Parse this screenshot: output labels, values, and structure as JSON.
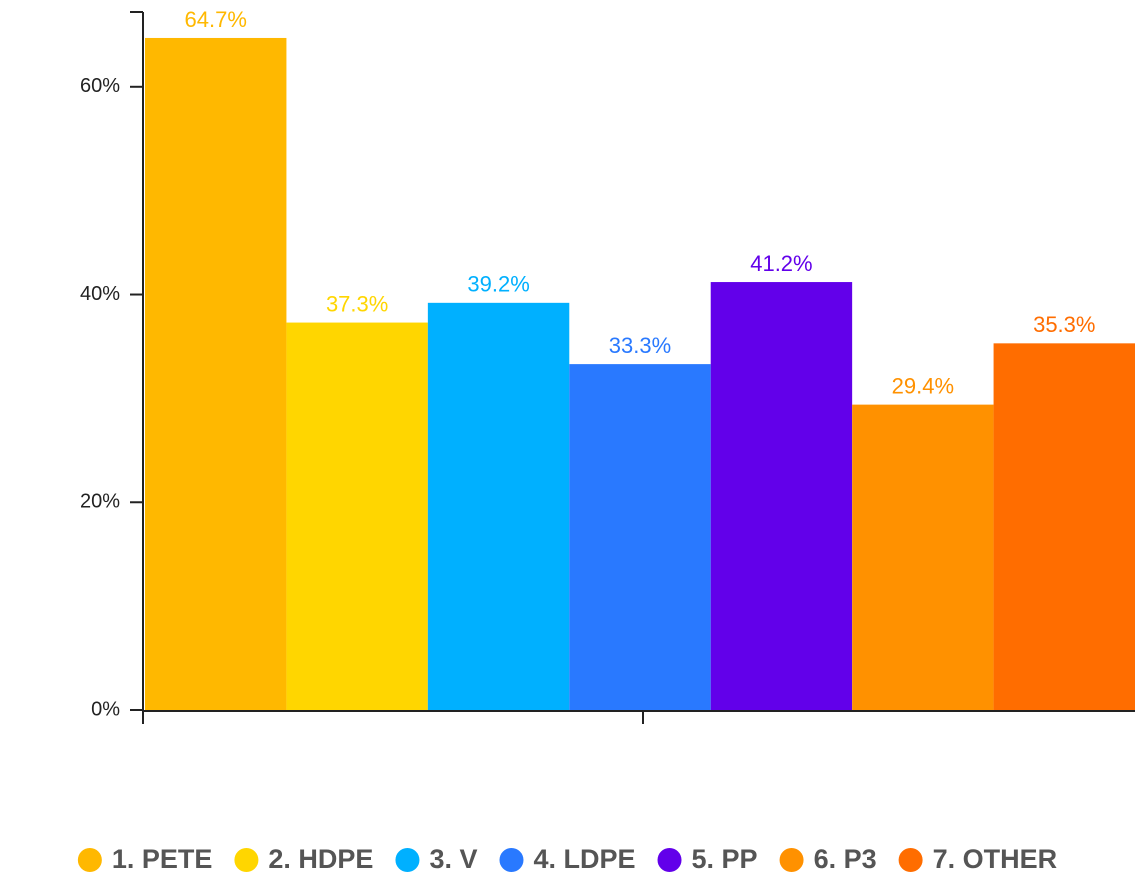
{
  "chart_data": {
    "type": "bar",
    "series": [
      {
        "name": "1. PETE",
        "color": "#FFB800",
        "values": [
          64.7
        ],
        "value_labels": [
          "64.7%"
        ]
      },
      {
        "name": "2. HDPE",
        "color": "#FFD600",
        "values": [
          37.3
        ],
        "value_labels": [
          "37.3%"
        ]
      },
      {
        "name": "3. V",
        "color": "#00B0FF",
        "values": [
          39.2
        ],
        "value_labels": [
          "39.2%"
        ]
      },
      {
        "name": "4. LDPE",
        "color": "#2979FF",
        "values": [
          33.3
        ],
        "value_labels": [
          "33.3%"
        ]
      },
      {
        "name": "5. PP",
        "color": "#6200EA",
        "values": [
          41.2
        ],
        "value_labels": [
          "41.2%"
        ]
      },
      {
        "name": "6. P3",
        "color": "#FF9100",
        "values": [
          29.4
        ],
        "value_labels": [
          "29.4%"
        ]
      },
      {
        "name": "7. OTHER",
        "color": "#FF6D00",
        "values": [
          35.3
        ],
        "value_labels": [
          "35.3%"
        ]
      }
    ],
    "ylim": [
      0,
      67.2
    ],
    "yticks": [
      {
        "value": 0,
        "label": "0%"
      },
      {
        "value": 20,
        "label": "20%"
      },
      {
        "value": 40,
        "label": "40%"
      },
      {
        "value": 60,
        "label": "60%"
      }
    ],
    "legend": "bottom"
  }
}
